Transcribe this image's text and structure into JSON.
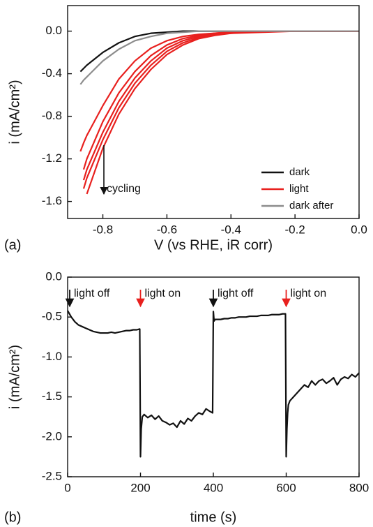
{
  "chart_data": [
    {
      "type": "line",
      "label": "(a)",
      "xlabel": "V (vs RHE, iR corr)",
      "ylabel": "i (mA/cm²)",
      "xlim": [
        -0.91,
        0.0
      ],
      "ylim": [
        -1.76,
        0.24
      ],
      "xticks": [
        -0.8,
        -0.6,
        -0.4,
        -0.2,
        {
          "value": 0,
          "label": "0.0"
        }
      ],
      "yticks": [
        {
          "value": 0,
          "label": "0.0"
        },
        -0.4,
        -0.8,
        -1.2,
        -1.6
      ],
      "legend": "lower right",
      "annotations": [
        {
          "text": "cycling"
        }
      ],
      "x": [
        -0.87,
        -0.86,
        -0.85,
        -0.8,
        -0.75,
        -0.7,
        -0.65,
        -0.6,
        -0.55,
        -0.5,
        -0.45,
        -0.4,
        -0.3,
        -0.2,
        -0.1,
        0.0
      ],
      "series": [
        {
          "name": "dark",
          "color": "#111111",
          "values": [
            -0.38,
            -0.35,
            -0.32,
            -0.2,
            -0.11,
            -0.05,
            -0.02,
            -0.01,
            0,
            0,
            0,
            0,
            0,
            0,
            0,
            0
          ]
        },
        {
          "name": "light",
          "color": "#e8201e",
          "values": [
            -1.13,
            -1.05,
            -0.98,
            -0.7,
            -0.45,
            -0.28,
            -0.16,
            -0.09,
            -0.05,
            -0.03,
            -0.02,
            -0.01,
            0,
            0,
            0,
            0
          ]
        },
        {
          "color": "#e8201e",
          "values": [
            null,
            -1.3,
            -1.2,
            -0.85,
            -0.58,
            -0.38,
            -0.23,
            -0.13,
            -0.07,
            -0.04,
            -0.02,
            -0.01,
            0,
            0,
            0,
            0
          ]
        },
        {
          "color": "#e8201e",
          "values": [
            null,
            -1.4,
            -1.3,
            -0.95,
            -0.66,
            -0.44,
            -0.28,
            -0.16,
            -0.09,
            -0.05,
            -0.03,
            -0.01,
            0,
            0,
            0,
            0
          ]
        },
        {
          "color": "#e8201e",
          "values": [
            null,
            -1.48,
            -1.38,
            -1.02,
            -0.72,
            -0.49,
            -0.32,
            -0.19,
            -0.11,
            -0.06,
            -0.03,
            -0.02,
            0,
            0,
            0,
            0
          ]
        },
        {
          "color": "#e8201e",
          "values": [
            null,
            null,
            -1.53,
            -1.1,
            -0.78,
            -0.54,
            -0.36,
            -0.22,
            -0.13,
            -0.07,
            -0.04,
            -0.02,
            -0.01,
            0,
            0,
            0
          ]
        },
        {
          "name": "dark after",
          "color": "#8c8c8c",
          "values": [
            -0.5,
            -0.46,
            -0.43,
            -0.28,
            -0.17,
            -0.09,
            -0.05,
            -0.02,
            -0.01,
            0,
            0,
            0,
            0,
            0,
            0,
            0
          ]
        }
      ]
    },
    {
      "type": "line",
      "label": "(b)",
      "xlabel": "time (s)",
      "ylabel": "i (mA/cm²)",
      "xlim": [
        0,
        800
      ],
      "ylim": [
        -2.5,
        0
      ],
      "xticks": [
        0,
        200,
        400,
        600,
        800
      ],
      "yticks": [
        {
          "value": 0,
          "label": "0.0"
        },
        -0.5,
        {
          "value": -1,
          "label": "-1.0"
        },
        -1.5,
        {
          "value": -2,
          "label": "-2.0"
        },
        -2.5
      ],
      "annotations": [
        {
          "text": "light off",
          "x": 0,
          "color": "#111111"
        },
        {
          "text": "light on",
          "x": 200,
          "color": "#e8201e"
        },
        {
          "text": "light off",
          "x": 400,
          "color": "#111111"
        },
        {
          "text": "light on",
          "x": 600,
          "color": "#e8201e"
        }
      ],
      "x": [
        0,
        10,
        20,
        30,
        40,
        50,
        60,
        70,
        80,
        90,
        100,
        110,
        120,
        130,
        140,
        150,
        160,
        170,
        180,
        190,
        198,
        200,
        202,
        205,
        210,
        220,
        230,
        240,
        250,
        260,
        270,
        280,
        290,
        300,
        310,
        320,
        330,
        340,
        350,
        360,
        370,
        380,
        390,
        398,
        400,
        402,
        405,
        410,
        420,
        430,
        440,
        450,
        460,
        470,
        480,
        490,
        500,
        510,
        520,
        530,
        540,
        550,
        560,
        570,
        580,
        590,
        598,
        600,
        602,
        604,
        606,
        610,
        620,
        630,
        640,
        650,
        660,
        670,
        680,
        690,
        700,
        710,
        720,
        730,
        740,
        750,
        760,
        770,
        780,
        790,
        800
      ],
      "series": [
        {
          "color": "#111111",
          "values": [
            -0.42,
            -0.5,
            -0.56,
            -0.6,
            -0.62,
            -0.64,
            -0.66,
            -0.68,
            -0.69,
            -0.7,
            -0.7,
            -0.7,
            -0.69,
            -0.7,
            -0.69,
            -0.68,
            -0.67,
            -0.67,
            -0.66,
            -0.66,
            -0.65,
            -2.25,
            -1.9,
            -1.75,
            -1.72,
            -1.76,
            -1.73,
            -1.78,
            -1.74,
            -1.8,
            -1.82,
            -1.85,
            -1.83,
            -1.88,
            -1.8,
            -1.84,
            -1.77,
            -1.8,
            -1.74,
            -1.7,
            -1.72,
            -1.65,
            -1.68,
            -1.7,
            -0.43,
            -0.55,
            -0.53,
            -0.53,
            -0.53,
            -0.52,
            -0.52,
            -0.51,
            -0.51,
            -0.5,
            -0.5,
            -0.5,
            -0.49,
            -0.49,
            -0.49,
            -0.48,
            -0.48,
            -0.48,
            -0.47,
            -0.47,
            -0.47,
            -0.46,
            -0.46,
            -2.25,
            -1.9,
            -1.7,
            -1.6,
            -1.55,
            -1.5,
            -1.45,
            -1.4,
            -1.35,
            -1.38,
            -1.3,
            -1.35,
            -1.3,
            -1.28,
            -1.33,
            -1.3,
            -1.26,
            -1.35,
            -1.28,
            -1.25,
            -1.27,
            -1.22,
            -1.25,
            -1.2
          ]
        }
      ]
    }
  ]
}
